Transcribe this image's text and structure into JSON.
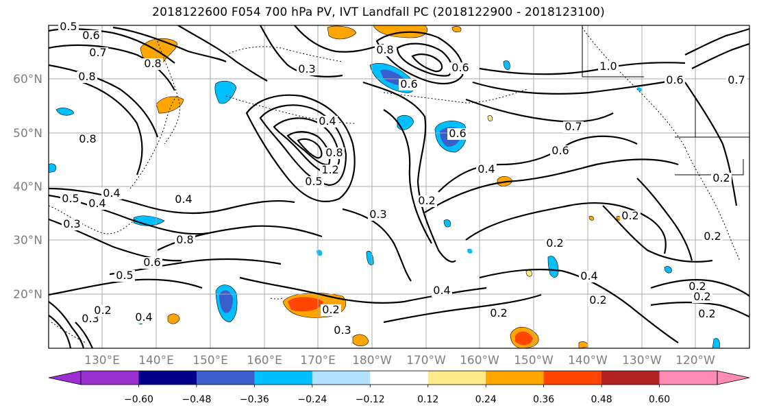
{
  "title": "2018122600 F054 700 hPa PV, IVT Landfall PC (2018122900 - 2018123100)",
  "lat_labels": [
    "60°N",
    "50°N",
    "40°N",
    "30°N",
    "20°N"
  ],
  "lon_labels": [
    "130°E",
    "140°E",
    "150°E",
    "160°E",
    "170°E",
    "180°W",
    "170°W",
    "160°W",
    "150°W",
    "140°W",
    "130°W",
    "120°W"
  ],
  "colorbar": {
    "ticks": [
      "−0.60",
      "−0.48",
      "−0.36",
      "−0.24",
      "−0.12",
      "0.12",
      "0.24",
      "0.36",
      "0.48",
      "0.60"
    ],
    "colors": [
      "#9b30d0",
      "#00008b",
      "#3a5fcd",
      "#00bfff",
      "#b0e2ff",
      "#ffffff",
      "#ffeb8a",
      "#ffa500",
      "#ff4500",
      "#b22222",
      "#ff8cb4"
    ]
  },
  "contour_labels": [
    "0.5",
    "0.6",
    "0.7",
    "0.8",
    "0.8",
    "0.3",
    "0.8",
    "0.6",
    "0.6",
    "1.0",
    "0.6",
    "0.7",
    "0.8",
    "0.4",
    "0.4",
    "0.8",
    "1.2",
    "0.5",
    "0.4",
    "0.6",
    "0.7",
    "0.6",
    "0.5",
    "0.4",
    "0.4",
    "0.3",
    "0.8",
    "0.6",
    "0.5",
    "0.3",
    "0.2",
    "0.2",
    "0.4",
    "0.2",
    "0.4",
    "0.2",
    "0.3",
    "0.2",
    "0.2",
    "0.2",
    "0.2",
    "0.2",
    "0.2",
    "0.2",
    "0.4",
    "0.3",
    "0.2"
  ]
}
